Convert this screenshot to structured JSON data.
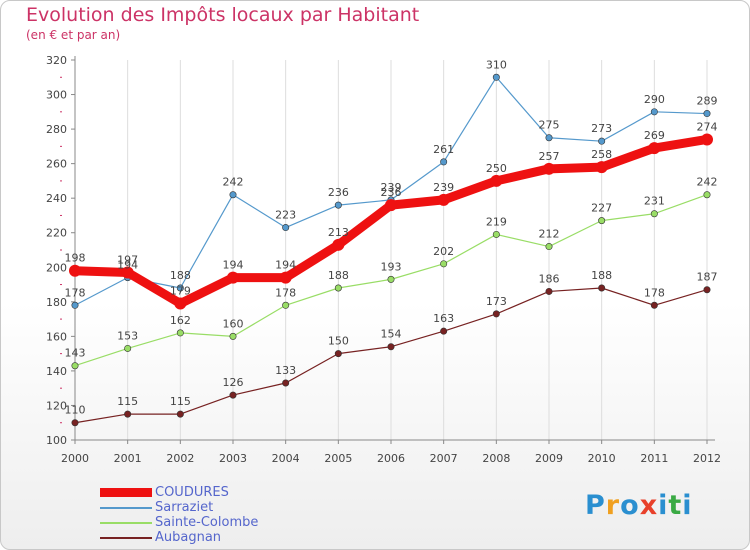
{
  "header": {
    "title": "Evolution des Impôts locaux par Habitant",
    "subtitle": "(en € et par an)"
  },
  "logo": {
    "letters": [
      "P",
      "r",
      "o",
      "x",
      "i",
      "t",
      "i"
    ]
  },
  "colors": {
    "title": "#cc3366",
    "axis": "#888888",
    "grid": "#dddddd",
    "legend_text": "#5566cc",
    "logo": [
      "#2a8fd0",
      "#f0a020",
      "#2a8fd0",
      "#e8402a",
      "#2a8fd0",
      "#3aaa44",
      "#2a8fd0"
    ]
  },
  "chart_data": {
    "type": "line",
    "title": "Evolution des Impôts locaux par Habitant",
    "subtitle": "(en € et par an)",
    "x": [
      "2000",
      "2001",
      "2002",
      "2003",
      "2004",
      "2005",
      "2006",
      "2007",
      "2008",
      "2009",
      "2010",
      "2011",
      "2012"
    ],
    "ylim": [
      100,
      320
    ],
    "yticks": [
      100,
      120,
      140,
      160,
      180,
      200,
      220,
      240,
      260,
      280,
      300,
      320
    ],
    "grid": true,
    "legend_position": "bottom-left",
    "series": [
      {
        "name": "COUDURES",
        "color": "#ee1111",
        "values": [
          198,
          197,
          179,
          194,
          194,
          213,
          236,
          239,
          250,
          257,
          258,
          269,
          274
        ],
        "width": 9,
        "marker": 6
      },
      {
        "name": "Sarraziet",
        "color": "#5599cc",
        "values": [
          178,
          194,
          188,
          242,
          223,
          236,
          239,
          261,
          310,
          275,
          273,
          290,
          289
        ],
        "width": 1.2,
        "marker": 3.2
      },
      {
        "name": "Sainte-Colombe",
        "color": "#99dd66",
        "values": [
          143,
          153,
          162,
          160,
          178,
          188,
          193,
          202,
          219,
          212,
          227,
          231,
          242
        ],
        "width": 1.2,
        "marker": 3.2
      },
      {
        "name": "Aubagnan",
        "color": "#772222",
        "values": [
          110,
          115,
          115,
          126,
          133,
          150,
          154,
          163,
          173,
          186,
          188,
          178,
          187
        ],
        "width": 1.2,
        "marker": 3.2
      }
    ]
  }
}
